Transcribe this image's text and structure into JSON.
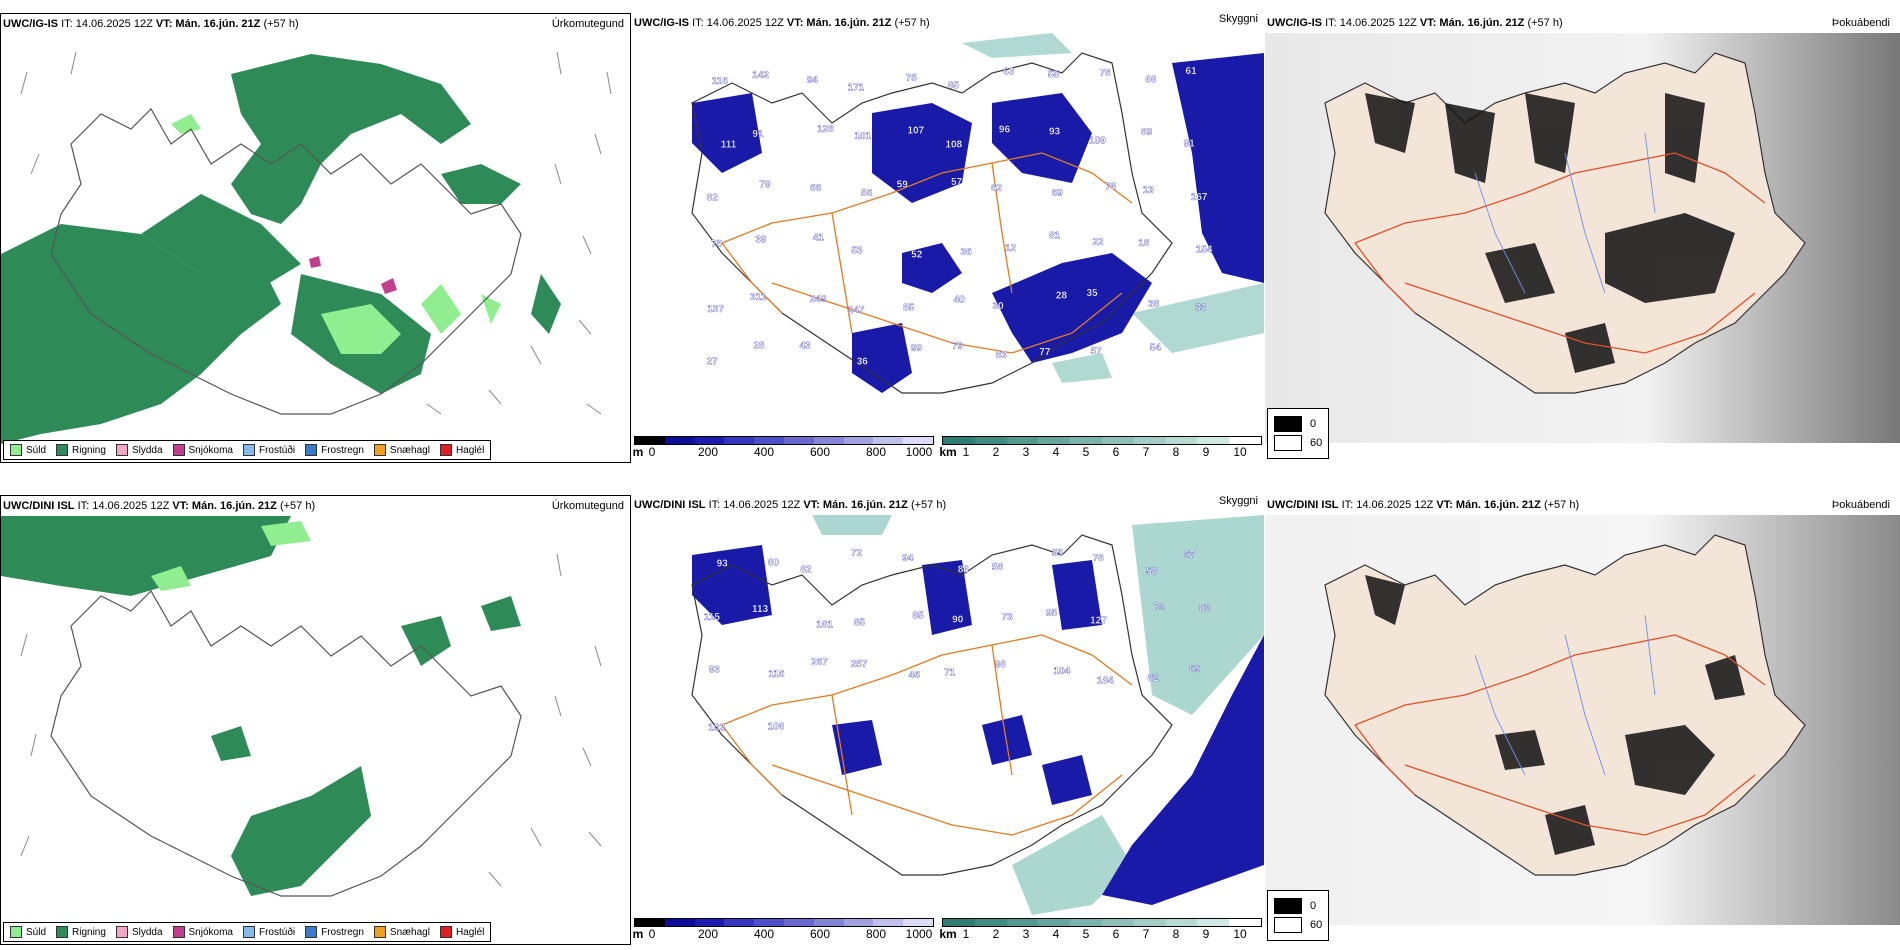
{
  "panels": {
    "top_precip": {
      "model": "UWC/IG-IS",
      "run": "IT: 14.06.2025 12Z",
      "valid": "VT: Mán. 16.jún. 21Z",
      "lead": "(+57 h)",
      "field": "Úrkomutegund"
    },
    "top_cloud": {
      "model": "UWC/IG-IS",
      "run": "IT: 14.06.2025 12Z",
      "valid": "VT: Mán. 16.jún. 21Z",
      "lead": "(+57 h)",
      "field": "Skyggni"
    },
    "top_fog": {
      "model": "UWC/IG-IS",
      "run": "IT: 14.06.2025 12Z",
      "valid": "VT: Mán. 16.jún. 21Z",
      "lead": "(+57 h)",
      "field": "Þokuábendi"
    },
    "bot_precip": {
      "model": "UWC/DINI ISL",
      "run": "IT: 14.06.2025 12Z",
      "valid": "VT: Mán. 16.jún. 21Z",
      "lead": "(+57 h)",
      "field": "Úrkomutegund"
    },
    "bot_cloud": {
      "model": "UWC/DINI ISL",
      "run": "IT: 14.06.2025 12Z",
      "valid": "VT: Mán. 16.jún. 21Z",
      "lead": "(+57 h)",
      "field": "Skyggni"
    },
    "bot_fog": {
      "model": "UWC/DINI ISL",
      "run": "IT: 14.06.2025 12Z",
      "valid": "VT: Mán. 16.jún. 21Z",
      "lead": "(+57 h)",
      "field": "Þokuábendi"
    }
  },
  "precip_legend": [
    {
      "label": "Súld",
      "color": "#90ee90"
    },
    {
      "label": "Rigning",
      "color": "#2e8b57"
    },
    {
      "label": "Slydda",
      "color": "#f4a6c8"
    },
    {
      "label": "Snjókoma",
      "color": "#c0408f"
    },
    {
      "label": "Frostúði",
      "color": "#87b8ea"
    },
    {
      "label": "Frostregn",
      "color": "#3a7bc8"
    },
    {
      "label": "Snæhagl",
      "color": "#f0a020"
    },
    {
      "label": "Haglél",
      "color": "#e02020"
    }
  ],
  "cloud_scale": {
    "unit": "m",
    "ticks": [
      "0",
      "200",
      "400",
      "600",
      "800",
      "1000"
    ]
  },
  "vis_scale": {
    "unit": "km",
    "ticks": [
      "1",
      "2",
      "3",
      "4",
      "5",
      "6",
      "7",
      "8",
      "9",
      "10"
    ]
  },
  "fog_legend": {
    "low": "0",
    "high": "60"
  },
  "top_cloud_labels": [
    "116",
    "142",
    "94",
    "171",
    "75",
    "85",
    "63",
    "55",
    "78",
    "68",
    "61",
    "111",
    "91",
    "128",
    "101",
    "107",
    "108",
    "96",
    "93",
    "109",
    "89",
    "91",
    "82",
    "79",
    "66",
    "56",
    "59",
    "57",
    "62",
    "69",
    "76",
    "13",
    "167",
    "75",
    "39",
    "41",
    "53",
    "52",
    "36",
    "12",
    "81",
    "22",
    "18",
    "154",
    "137",
    "311",
    "249",
    "247",
    "85",
    "40",
    "30",
    "28",
    "35",
    "38",
    "33",
    "27",
    "28",
    "43",
    "36",
    "99",
    "79",
    "83",
    "77",
    "57",
    "54"
  ],
  "bot_cloud_labels": [
    "93",
    "60",
    "82",
    "72",
    "94",
    "86",
    "58",
    "55",
    "78",
    "58",
    "67",
    "115",
    "113",
    "181",
    "85",
    "85",
    "90",
    "73",
    "95",
    "127",
    "74",
    "82",
    "93",
    "116",
    "267",
    "257",
    "46",
    "71",
    "98",
    "104",
    "184",
    "82",
    "69",
    "102",
    "106"
  ]
}
